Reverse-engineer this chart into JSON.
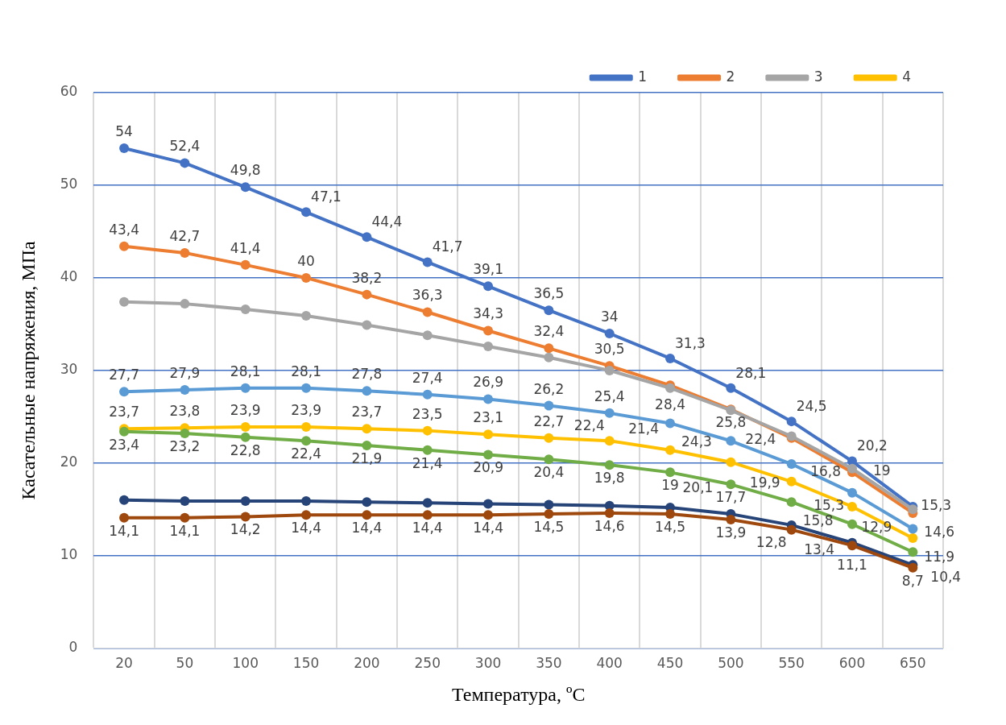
{
  "chart_data": {
    "type": "line",
    "xlabel": "Температура, ºС",
    "ylabel": "Касательные напряжения, МПа",
    "categories": [
      "20",
      "50",
      "100",
      "150",
      "200",
      "250",
      "300",
      "350",
      "400",
      "450",
      "500",
      "550",
      "600",
      "650"
    ],
    "ylim": [
      0,
      60
    ],
    "yticks": [
      0,
      10,
      20,
      30,
      40,
      50,
      60
    ],
    "grid": true,
    "legend": "top right",
    "marker": "circle",
    "series": [
      {
        "name": "1",
        "color": "#4472c4",
        "values": [
          54,
          52.4,
          49.8,
          47.1,
          44.4,
          41.7,
          39.1,
          36.5,
          34,
          31.3,
          28.1,
          24.5,
          20.2,
          15.3
        ],
        "value_labels": [
          "54",
          "52,4",
          "49,8",
          "47,1",
          "44,4",
          "41,7",
          "39,1",
          "36,5",
          "34",
          "31,3",
          "28,1",
          "24,5",
          "20,2",
          "15,3"
        ]
      },
      {
        "name": "2",
        "color": "#ed7d31",
        "values": [
          43.4,
          42.7,
          41.4,
          40,
          38.2,
          36.3,
          34.3,
          32.4,
          30.5,
          28.4,
          25.8,
          22.7,
          19,
          14.6
        ],
        "value_labels": [
          "43,4",
          "42,7",
          "41,4",
          "40",
          "38,2",
          "36,3",
          "34,3",
          "32,4",
          "30,5",
          "28,4",
          "25,8",
          null,
          "19",
          "14,6"
        ]
      },
      {
        "name": "3",
        "color": "#a5a5a5",
        "values": [
          37.4,
          37.2,
          36.6,
          35.9,
          34.9,
          33.8,
          32.6,
          31.4,
          30,
          28.1,
          25.7,
          22.9,
          19.4,
          15
        ]
      },
      {
        "name": "4",
        "color": "#ffc000",
        "values": [
          23.7,
          23.8,
          23.9,
          23.9,
          23.7,
          23.5,
          23.1,
          22.7,
          22.4,
          21.4,
          20.1,
          18,
          15.3,
          11.9
        ],
        "value_labels": [
          "23,7",
          "23,8",
          "23,9",
          "23,9",
          "23,7",
          "23,5",
          "23,1",
          "22,7",
          "22,4",
          "21,4",
          "20,1",
          null,
          "15,3",
          "11,9"
        ]
      },
      {
        "color": "#5b9bd5",
        "values": [
          27.7,
          27.9,
          28.1,
          28.1,
          27.8,
          27.4,
          26.9,
          26.2,
          25.4,
          24.3,
          22.4,
          19.9,
          16.8,
          12.9
        ],
        "value_labels": [
          "27,7",
          "27,9",
          "28,1",
          "28,1",
          "27,8",
          "27,4",
          "26,9",
          "26,2",
          "25,4",
          "24,3",
          "22,4",
          "19,9",
          "16,8",
          "12,9"
        ]
      },
      {
        "color": "#70ad47",
        "values": [
          23.4,
          23.2,
          22.8,
          22.4,
          21.9,
          21.4,
          20.9,
          20.4,
          19.8,
          19,
          17.7,
          15.8,
          13.4,
          10.4
        ],
        "value_labels": [
          "23,4",
          "23,2",
          "22,8",
          "22,4",
          "21,9",
          "21,4",
          "20,9",
          "20,4",
          "19,8",
          "19",
          "17,7",
          "15,8",
          "13,4",
          "10,4"
        ]
      },
      {
        "color": "#264478",
        "values": [
          16,
          15.9,
          15.9,
          15.9,
          15.8,
          15.7,
          15.6,
          15.5,
          15.4,
          15.2,
          14.5,
          13.3,
          11.4,
          9
        ]
      },
      {
        "color": "#9e480e",
        "values": [
          14.1,
          14.1,
          14.2,
          14.4,
          14.4,
          14.4,
          14.4,
          14.5,
          14.6,
          14.5,
          13.9,
          12.8,
          11.1,
          8.7
        ],
        "value_labels": [
          "14,1",
          "14,1",
          "14,2",
          "14,4",
          "14,4",
          "14,4",
          "14,4",
          "14,5",
          "14,6",
          "14,5",
          "13,9",
          "12,8",
          "11,1",
          "8,7"
        ]
      }
    ]
  }
}
